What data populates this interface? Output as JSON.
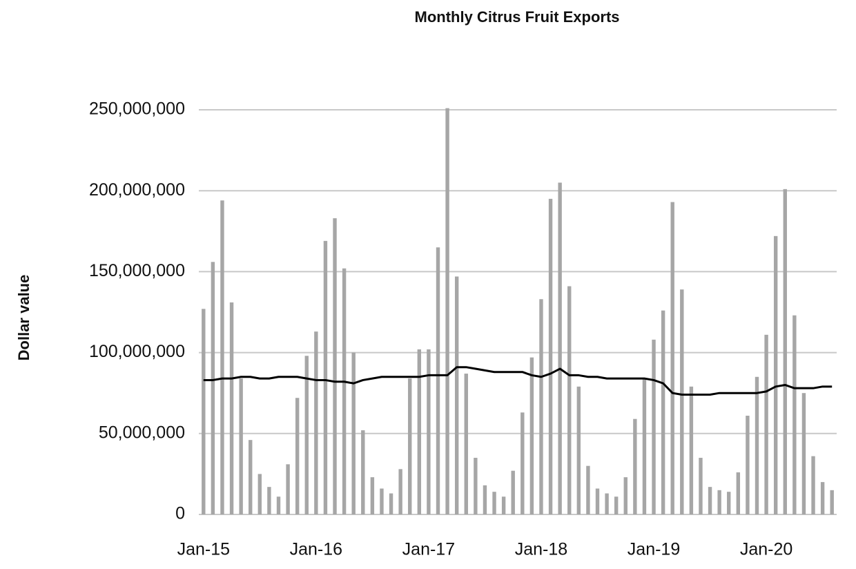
{
  "chart_data": {
    "type": "bar",
    "title": "Monthly Citrus Fruit Exports",
    "y_label": "Dollar value",
    "categories": [
      "Jan-15",
      null,
      null,
      null,
      null,
      null,
      null,
      null,
      null,
      null,
      null,
      null,
      "Jan-16",
      null,
      null,
      null,
      null,
      null,
      null,
      null,
      null,
      null,
      null,
      null,
      "Jan-17",
      null,
      null,
      null,
      null,
      null,
      null,
      null,
      null,
      null,
      null,
      null,
      "Jan-18",
      null,
      null,
      null,
      null,
      null,
      null,
      null,
      null,
      null,
      null,
      null,
      "Jan-19",
      null,
      null,
      null,
      null,
      null,
      null,
      null,
      null,
      null,
      null,
      null,
      "Jan-20",
      null,
      null,
      null,
      null,
      null,
      null,
      null
    ],
    "series": [
      {
        "type": "bar",
        "color": "#a6a6a6",
        "values": [
          127000000,
          156000000,
          194000000,
          131000000,
          84000000,
          46000000,
          25000000,
          17000000,
          11000000,
          31000000,
          72000000,
          98000000,
          113000000,
          169000000,
          183000000,
          152000000,
          100000000,
          52000000,
          23000000,
          16000000,
          13000000,
          28000000,
          84000000,
          102000000,
          102000000,
          165000000,
          251000000,
          147000000,
          87000000,
          35000000,
          18000000,
          14000000,
          11000000,
          27000000,
          63000000,
          97000000,
          133000000,
          195000000,
          205000000,
          141000000,
          79000000,
          30000000,
          16000000,
          13000000,
          11000000,
          23000000,
          59000000,
          84000000,
          108000000,
          126000000,
          193000000,
          139000000,
          79000000,
          35000000,
          17000000,
          15000000,
          14000000,
          26000000,
          61000000,
          85000000,
          111000000,
          172000000,
          201000000,
          123000000,
          75000000,
          36000000,
          20000000,
          15000000
        ]
      },
      {
        "type": "line",
        "color": "#000000",
        "values": [
          83000000,
          83000000,
          84000000,
          84000000,
          85000000,
          85000000,
          84000000,
          84000000,
          85000000,
          85000000,
          85000000,
          84000000,
          83000000,
          83000000,
          82000000,
          82000000,
          81000000,
          83000000,
          84000000,
          85000000,
          85000000,
          85000000,
          85000000,
          85000000,
          86000000,
          86000000,
          86000000,
          91000000,
          91000000,
          90000000,
          89000000,
          88000000,
          88000000,
          88000000,
          88000000,
          86000000,
          85000000,
          87000000,
          90000000,
          86000000,
          86000000,
          85000000,
          85000000,
          84000000,
          84000000,
          84000000,
          84000000,
          84000000,
          83000000,
          81000000,
          75000000,
          74000000,
          74000000,
          74000000,
          74000000,
          75000000,
          75000000,
          75000000,
          75000000,
          75000000,
          76000000,
          79000000,
          80000000,
          78000000,
          78000000,
          78000000,
          79000000,
          79000000
        ]
      }
    ],
    "ylim": [
      0,
      250000000
    ],
    "yticks": [
      0,
      {
        "value": 50000000,
        "label": "50,000,000"
      },
      {
        "value": 100000000,
        "label": "100,000,000"
      },
      {
        "value": 150000000,
        "label": "150,000,000"
      },
      {
        "value": 200000000,
        "label": "200,000,000"
      },
      {
        "value": 250000000,
        "label": "250,000,000"
      }
    ],
    "grid": true
  }
}
